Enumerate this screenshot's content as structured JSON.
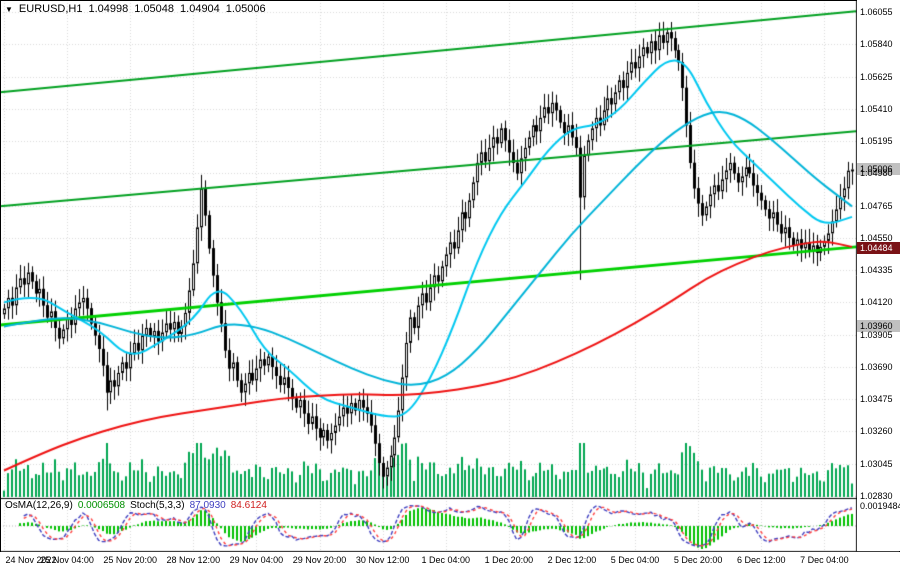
{
  "header": {
    "symbol": "EURUSD,H1",
    "open": "1.04998",
    "high": "1.05048",
    "low": "1.04904",
    "close": "1.05006"
  },
  "price_axis": {
    "bid_marker": {
      "label": "1.05006"
    },
    "level_marker": {
      "label": "1.04484"
    },
    "aux_marker": {
      "label": "1.03960"
    }
  },
  "time_axis": {
    "labels": [
      "24 Nov 2022",
      "25 Nov 04:00",
      "25 Nov 20:00",
      "28 Nov 12:00",
      "29 Nov 04:00",
      "29 Nov 20:00",
      "30 Nov 12:00",
      "1 Dec 04:00",
      "1 Dec 20:00",
      "2 Dec 12:00",
      "5 Dec 04:00",
      "5 Dec 20:00",
      "6 Dec 12:00",
      "7 Dec 04:00"
    ]
  },
  "indicator_panel": {
    "osma_label": "OsMA(12,26,9)",
    "osma_value": "0.0006508",
    "stoch_label": "Stoch(5,3,3)",
    "stoch_k": "87.0930",
    "stoch_d": "84.6124",
    "scale_max": "0.0019484"
  },
  "colors": {
    "grid": "#d8d8d8",
    "candle_border": "#000000",
    "bull_fill": "#ffffff",
    "bear_fill": "#000000",
    "volume": "#00a651",
    "osma": "#00c000",
    "stoch_k": "#4040c0",
    "stoch_d": "#ff4040"
  },
  "chart_data": {
    "type": "candlestick",
    "title": "EURUSD H1 with OsMA and Stochastic",
    "symbol": "EURUSD",
    "timeframe": "H1",
    "label_every": 16,
    "y_ticks": [
      1.06055,
      1.0584,
      1.05625,
      1.0541,
      1.05195,
      1.0498,
      1.04765,
      1.0455,
      1.04335,
      1.0412,
      1.03905,
      1.0369,
      1.03475,
      1.0326,
      1.03045,
      1.0283
    ],
    "closes": [
      1.0408,
      1.0415,
      1.041,
      1.0422,
      1.0428,
      1.0424,
      1.0432,
      1.0426,
      1.0418,
      1.0421,
      1.041,
      1.0402,
      1.0406,
      1.0395,
      1.0388,
      1.0394,
      1.0401,
      1.0397,
      1.0408,
      1.0412,
      1.0415,
      1.0408,
      1.0398,
      1.039,
      1.0381,
      1.037,
      1.0352,
      1.036,
      1.0356,
      1.0365,
      1.0372,
      1.0368,
      1.0378,
      1.0385,
      1.038,
      1.039,
      1.0395,
      1.0389,
      1.0393,
      1.0386,
      1.0392,
      1.0398,
      1.0394,
      1.0399,
      1.0391,
      1.0396,
      1.0405,
      1.042,
      1.0438,
      1.0462,
      1.0488,
      1.047,
      1.0448,
      1.043,
      1.0412,
      1.0398,
      1.038,
      1.0368,
      1.0372,
      1.036,
      1.0352,
      1.0358,
      1.0365,
      1.036,
      1.0368,
      1.0374,
      1.037,
      1.0376,
      1.0369,
      1.0363,
      1.0357,
      1.0362,
      1.0355,
      1.0348,
      1.0342,
      1.0347,
      1.0338,
      1.0331,
      1.0336,
      1.0328,
      1.0322,
      1.0327,
      1.032,
      1.0325,
      1.033,
      1.0336,
      1.0342,
      1.0338,
      1.0345,
      1.034,
      1.0347,
      1.0342,
      1.0338,
      1.033,
      1.0318,
      1.0305,
      1.0296,
      1.0302,
      1.031,
      1.0322,
      1.034,
      1.0362,
      1.0385,
      1.0402,
      1.0395,
      1.041,
      1.0418,
      1.0412,
      1.0422,
      1.043,
      1.0426,
      1.0436,
      1.0444,
      1.0452,
      1.0448,
      1.046,
      1.0472,
      1.0468,
      1.048,
      1.0492,
      1.0505,
      1.0512,
      1.0506,
      1.0515,
      1.0522,
      1.0518,
      1.0528,
      1.052,
      1.0512,
      1.0505,
      1.0498,
      1.0508,
      1.0515,
      1.0522,
      1.053,
      1.0526,
      1.0535,
      1.0542,
      1.0538,
      1.0545,
      1.054,
      1.0532,
      1.0525,
      1.053,
      1.0522,
      1.0515,
      1.0482,
      1.051,
      1.052,
      1.0528,
      1.0535,
      1.053,
      1.054,
      1.0548,
      1.0544,
      1.0552,
      1.056,
      1.0555,
      1.0565,
      1.0572,
      1.0568,
      1.0576,
      1.0582,
      1.0578,
      1.0586,
      1.058,
      1.059,
      1.0585,
      1.0592,
      1.0588,
      1.058,
      1.0572,
      1.0555,
      1.053,
      1.0505,
      1.0488,
      1.0478,
      1.047,
      1.0476,
      1.0484,
      1.049,
      1.0486,
      1.0494,
      1.05,
      1.0505,
      1.0498,
      1.0492,
      1.0496,
      1.0502,
      1.0498,
      1.049,
      1.0485,
      1.048,
      1.0474,
      1.0468,
      1.0472,
      1.0464,
      1.0458,
      1.0462,
      1.0455,
      1.045,
      1.0454,
      1.0448,
      1.0452,
      1.0446,
      1.045,
      1.0445,
      1.0449,
      1.0453,
      1.0458,
      1.0466,
      1.0474,
      1.0482,
      1.0488,
      1.04998,
      1.05006
    ],
    "overrides": {
      "26": {
        "l": 1.034
      },
      "50": {
        "h": 1.0497
      },
      "96": {
        "l": 1.0288
      },
      "146": {
        "l": 1.0427
      },
      "168": {
        "h": 1.0595
      },
      "215": {
        "o": 1.04998,
        "h": 1.05048,
        "l": 1.04904,
        "c": 1.05006
      }
    },
    "moving_averages": [
      {
        "name": "ma-fast-cyan",
        "color": "#00c8f0",
        "width": 2,
        "points": [
          [
            0,
            1.0412
          ],
          [
            8,
            1.0418
          ],
          [
            16,
            1.0405
          ],
          [
            24,
            1.0394
          ],
          [
            32,
            1.0374
          ],
          [
            40,
            1.0386
          ],
          [
            48,
            1.04
          ],
          [
            54,
            1.0424
          ],
          [
            60,
            1.0408
          ],
          [
            66,
            1.038
          ],
          [
            72,
            1.0368
          ],
          [
            80,
            1.0348
          ],
          [
            88,
            1.0342
          ],
          [
            96,
            1.0336
          ],
          [
            102,
            1.0336
          ],
          [
            108,
            1.036
          ],
          [
            114,
            1.0396
          ],
          [
            120,
            1.044
          ],
          [
            126,
            1.0472
          ],
          [
            132,
            1.0492
          ],
          [
            138,
            1.0514
          ],
          [
            144,
            1.0528
          ],
          [
            150,
            1.053
          ],
          [
            156,
            1.054
          ],
          [
            162,
            1.0558
          ],
          [
            168,
            1.0574
          ],
          [
            173,
            1.0572
          ],
          [
            178,
            1.0545
          ],
          [
            184,
            1.052
          ],
          [
            190,
            1.0505
          ],
          [
            196,
            1.049
          ],
          [
            202,
            1.0475
          ],
          [
            208,
            1.0463
          ],
          [
            215,
            1.0469
          ]
        ]
      },
      {
        "name": "ma-slow-cyan",
        "color": "#00b4d8",
        "width": 2,
        "points": [
          [
            0,
            1.0396
          ],
          [
            8,
            1.04
          ],
          [
            16,
            1.0402
          ],
          [
            24,
            1.0399
          ],
          [
            32,
            1.0392
          ],
          [
            40,
            1.0388
          ],
          [
            48,
            1.039
          ],
          [
            56,
            1.0398
          ],
          [
            64,
            1.0396
          ],
          [
            72,
            1.0388
          ],
          [
            80,
            1.0378
          ],
          [
            88,
            1.0368
          ],
          [
            96,
            1.036
          ],
          [
            104,
            1.0356
          ],
          [
            112,
            1.0362
          ],
          [
            120,
            1.038
          ],
          [
            128,
            1.0406
          ],
          [
            136,
            1.0432
          ],
          [
            144,
            1.0458
          ],
          [
            152,
            1.048
          ],
          [
            160,
            1.0502
          ],
          [
            168,
            1.0522
          ],
          [
            176,
            1.0536
          ],
          [
            182,
            1.054
          ],
          [
            188,
            1.0534
          ],
          [
            194,
            1.0522
          ],
          [
            200,
            1.0508
          ],
          [
            206,
            1.0494
          ],
          [
            211,
            1.0484
          ],
          [
            215,
            1.0476
          ]
        ]
      },
      {
        "name": "ma-long-red",
        "color": "#ee1111",
        "width": 2,
        "points": [
          [
            0,
            1.03
          ],
          [
            10,
            1.0312
          ],
          [
            20,
            1.0322
          ],
          [
            30,
            1.033
          ],
          [
            40,
            1.0336
          ],
          [
            50,
            1.034
          ],
          [
            60,
            1.0344
          ],
          [
            70,
            1.0348
          ],
          [
            80,
            1.035
          ],
          [
            90,
            1.0351
          ],
          [
            100,
            1.035
          ],
          [
            110,
            1.0352
          ],
          [
            120,
            1.0356
          ],
          [
            130,
            1.0362
          ],
          [
            140,
            1.0372
          ],
          [
            150,
            1.0384
          ],
          [
            160,
            1.0398
          ],
          [
            170,
            1.0414
          ],
          [
            178,
            1.0428
          ],
          [
            186,
            1.0438
          ],
          [
            194,
            1.0446
          ],
          [
            202,
            1.0451
          ],
          [
            208,
            1.0453
          ],
          [
            215,
            1.0449
          ]
        ]
      }
    ],
    "trendlines": [
      {
        "name": "channel-upper",
        "color": "#00a020",
        "width": 2,
        "p1": 1.0552,
        "p2": 1.0606
      },
      {
        "name": "channel-middle",
        "color": "#00a020",
        "width": 2,
        "p1": 1.0476,
        "p2": 1.0526
      },
      {
        "name": "channel-lower",
        "color": "#00d000",
        "width": 3,
        "p1": 1.0397,
        "p2": 1.0449
      }
    ],
    "indicators": {
      "osma": {
        "params": [
          12,
          26,
          9
        ],
        "current": 0.0006508
      },
      "stochastic": {
        "params": [
          5,
          3,
          3
        ],
        "k": 87.093,
        "d": 84.6124
      }
    }
  }
}
